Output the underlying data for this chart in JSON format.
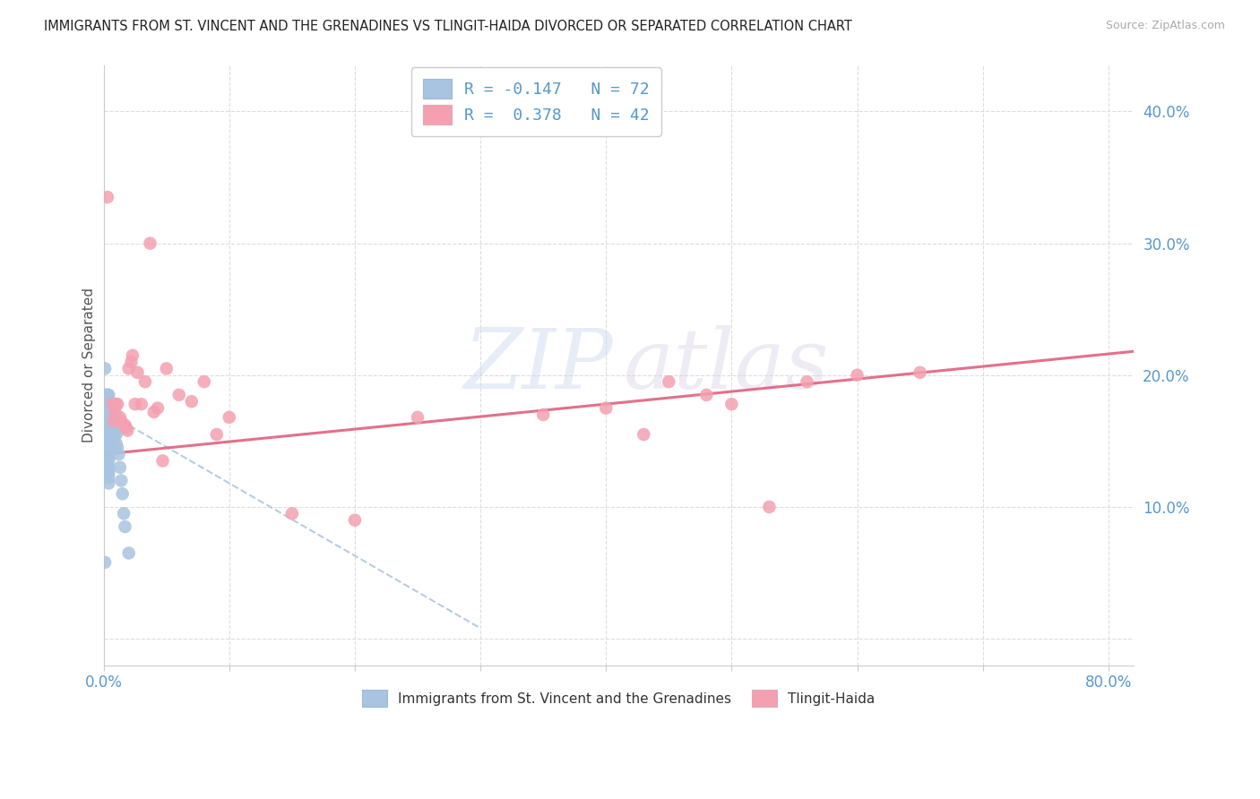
{
  "title": "IMMIGRANTS FROM ST. VINCENT AND THE GRENADINES VS TLINGIT-HAIDA DIVORCED OR SEPARATED CORRELATION CHART",
  "source": "Source: ZipAtlas.com",
  "ylabel": "Divorced or Separated",
  "xlim": [
    0.0,
    0.82
  ],
  "ylim": [
    -0.02,
    0.435
  ],
  "xtick_positions": [
    0.0,
    0.1,
    0.2,
    0.3,
    0.4,
    0.5,
    0.6,
    0.7,
    0.8
  ],
  "ytick_positions": [
    0.0,
    0.1,
    0.2,
    0.3,
    0.4
  ],
  "series1_color": "#a8c4e0",
  "series2_color": "#f4a0b0",
  "series1_label": "Immigrants from St. Vincent and the Grenadines",
  "series2_label": "Tlingit-Haida",
  "legend_line1_r": "R = -0.147",
  "legend_line1_n": "N = 72",
  "legend_line2_r": "R =  0.378",
  "legend_line2_n": "N = 42",
  "trendline1_color": "#aac4dc",
  "trendline2_color": "#e06080",
  "watermark_zip": "ZIP",
  "watermark_atlas": "atlas",
  "background_color": "#ffffff",
  "grid_color": "#dddddd",
  "series1_x": [
    0.001,
    0.001,
    0.001,
    0.001,
    0.002,
    0.002,
    0.002,
    0.002,
    0.002,
    0.002,
    0.002,
    0.002,
    0.003,
    0.003,
    0.003,
    0.003,
    0.003,
    0.003,
    0.003,
    0.003,
    0.003,
    0.003,
    0.003,
    0.004,
    0.004,
    0.004,
    0.004,
    0.004,
    0.004,
    0.004,
    0.004,
    0.004,
    0.004,
    0.004,
    0.004,
    0.004,
    0.004,
    0.004,
    0.004,
    0.004,
    0.004,
    0.004,
    0.004,
    0.004,
    0.004,
    0.004,
    0.005,
    0.005,
    0.005,
    0.005,
    0.005,
    0.005,
    0.005,
    0.006,
    0.006,
    0.006,
    0.006,
    0.007,
    0.007,
    0.008,
    0.008,
    0.009,
    0.01,
    0.01,
    0.011,
    0.012,
    0.013,
    0.014,
    0.015,
    0.016,
    0.017,
    0.02
  ],
  "series1_y": [
    0.205,
    0.155,
    0.13,
    0.058,
    0.185,
    0.18,
    0.178,
    0.175,
    0.173,
    0.17,
    0.165,
    0.16,
    0.185,
    0.182,
    0.178,
    0.175,
    0.173,
    0.17,
    0.168,
    0.165,
    0.163,
    0.158,
    0.152,
    0.185,
    0.182,
    0.178,
    0.175,
    0.173,
    0.17,
    0.168,
    0.165,
    0.163,
    0.16,
    0.158,
    0.155,
    0.152,
    0.148,
    0.145,
    0.142,
    0.138,
    0.135,
    0.13,
    0.128,
    0.125,
    0.122,
    0.118,
    0.175,
    0.17,
    0.165,
    0.16,
    0.155,
    0.15,
    0.145,
    0.17,
    0.165,
    0.158,
    0.15,
    0.165,
    0.158,
    0.16,
    0.152,
    0.155,
    0.155,
    0.148,
    0.145,
    0.14,
    0.13,
    0.12,
    0.11,
    0.095,
    0.085,
    0.065
  ],
  "series2_x": [
    0.003,
    0.007,
    0.008,
    0.009,
    0.01,
    0.011,
    0.013,
    0.014,
    0.015,
    0.017,
    0.018,
    0.019,
    0.02,
    0.022,
    0.023,
    0.025,
    0.027,
    0.03,
    0.033,
    0.037,
    0.04,
    0.043,
    0.047,
    0.05,
    0.06,
    0.07,
    0.08,
    0.09,
    0.1,
    0.15,
    0.2,
    0.25,
    0.35,
    0.4,
    0.43,
    0.45,
    0.48,
    0.5,
    0.53,
    0.56,
    0.6,
    0.65
  ],
  "series2_y": [
    0.335,
    0.178,
    0.165,
    0.172,
    0.178,
    0.178,
    0.168,
    0.165,
    0.163,
    0.162,
    0.16,
    0.158,
    0.205,
    0.21,
    0.215,
    0.178,
    0.202,
    0.178,
    0.195,
    0.3,
    0.172,
    0.175,
    0.135,
    0.205,
    0.185,
    0.18,
    0.195,
    0.155,
    0.168,
    0.095,
    0.09,
    0.168,
    0.17,
    0.175,
    0.155,
    0.195,
    0.185,
    0.178,
    0.1,
    0.195,
    0.2,
    0.202
  ],
  "trendline1_x0": 0.0,
  "trendline1_y0": 0.173,
  "trendline1_x1": 0.3,
  "trendline1_y1": 0.008,
  "trendline2_x0": 0.0,
  "trendline2_y0": 0.14,
  "trendline2_x1": 0.82,
  "trendline2_y1": 0.218
}
